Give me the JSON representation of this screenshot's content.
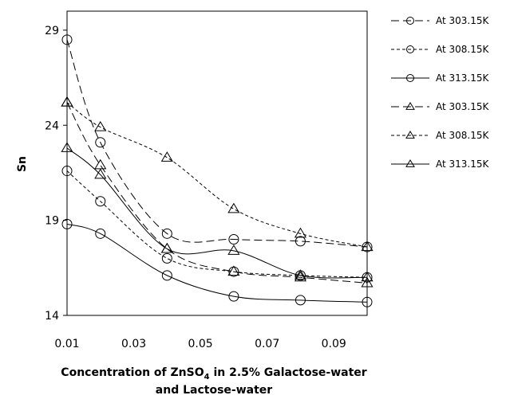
{
  "chart_data": {
    "type": "line",
    "title": "",
    "xlabel_line1_prefix": "Concentration of ZnSO",
    "xlabel_sub": "4",
    "xlabel_line1_suffix": " in 2.5% Galactose-water",
    "xlabel_line2": "and Lactose-water",
    "ylabel": "Sn",
    "xlim": [
      0.01,
      0.1
    ],
    "ylim": [
      14,
      30
    ],
    "x_ticks": [
      "0.01",
      "0.03",
      "0.05",
      "0.07",
      "0.09"
    ],
    "y_ticks": [
      "14",
      "19",
      "24",
      "29"
    ],
    "x": [
      0.01,
      0.02,
      0.04,
      0.06,
      0.08,
      0.1
    ],
    "series": [
      {
        "name": "At 303.15K",
        "marker": "circle",
        "dash": "long",
        "values": [
          28.5,
          23.1,
          18.3,
          18.0,
          17.9,
          17.6
        ]
      },
      {
        "name": "At 308.15K",
        "marker": "circle",
        "dash": "short",
        "values": [
          21.6,
          20.0,
          17.0,
          16.3,
          16.1,
          16.0
        ]
      },
      {
        "name": "At 313.15K",
        "marker": "circle",
        "dash": "solid",
        "values": [
          18.8,
          18.3,
          16.1,
          15.0,
          14.8,
          14.7
        ]
      },
      {
        "name": "At 303.15K",
        "marker": "triangle",
        "dash": "long",
        "values": [
          25.2,
          21.9,
          17.5,
          16.3,
          16.0,
          15.7
        ]
      },
      {
        "name": "At 308.15K",
        "marker": "triangle",
        "dash": "short",
        "values": [
          25.2,
          23.9,
          22.3,
          19.6,
          18.3,
          17.6
        ]
      },
      {
        "name": "At 313.15K",
        "marker": "triangle",
        "dash": "solid",
        "values": [
          22.8,
          21.4,
          17.5,
          17.4,
          16.1,
          16.0
        ]
      }
    ]
  }
}
